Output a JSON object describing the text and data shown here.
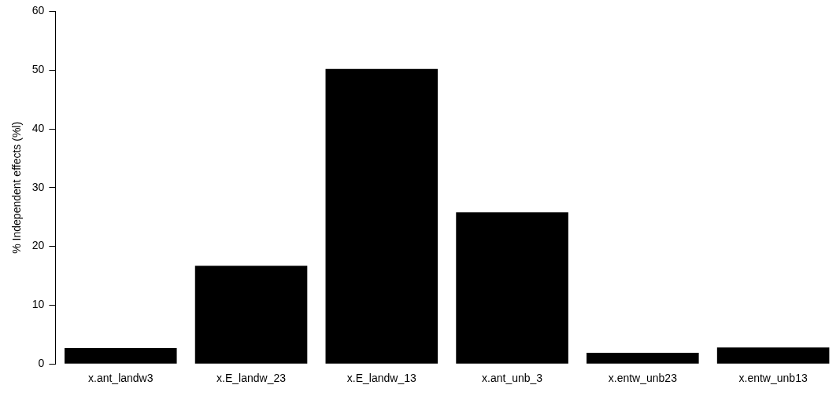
{
  "chart_data": {
    "type": "bar",
    "ylabel": "% Independent effects (%l)",
    "categories": [
      "x.ant_landw3",
      "x.E_landw_23",
      "x.E_landw_13",
      "x.ant_unb_3",
      "x.entw_unb23",
      "x.entw_unb13"
    ],
    "values": [
      2.7,
      16.7,
      50.2,
      25.8,
      1.9,
      2.8
    ],
    "color": "#000000",
    "ylim": [
      0,
      60
    ],
    "yticks": [
      0,
      10,
      20,
      30,
      40,
      50,
      60
    ],
    "grid": false,
    "legend": false
  }
}
